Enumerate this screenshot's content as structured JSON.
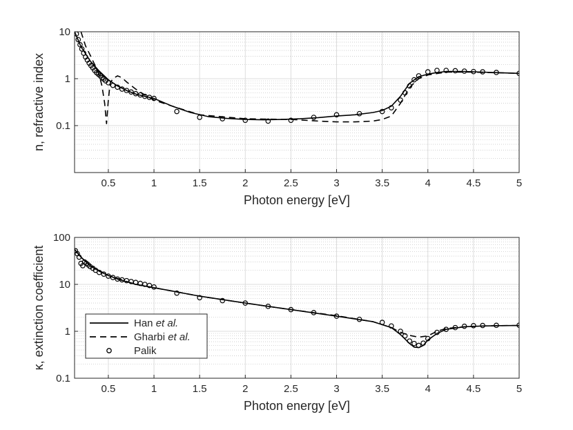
{
  "chart_data": [
    {
      "type": "line",
      "id": "n-panel",
      "xlabel": "Photon energy [eV]",
      "ylabel": "n, refractive index",
      "xlim": [
        0.13,
        5
      ],
      "ylim": [
        0.01,
        10
      ],
      "yscale": "log",
      "grid": true,
      "minor_grid": true,
      "xticks": [
        0.5,
        1,
        1.5,
        2,
        2.5,
        3,
        3.5,
        4,
        4.5,
        5
      ],
      "xtick_labels": [
        "0.5",
        "1",
        "1.5",
        "2",
        "2.5",
        "3",
        "3.5",
        "4",
        "4.5",
        "5"
      ],
      "yticks": [
        0.1,
        1,
        10
      ],
      "ytick_labels": [
        "0.1",
        "1",
        "10"
      ],
      "series": [
        {
          "name": "Han et al.",
          "style": "solid",
          "x": [
            0.13,
            0.2,
            0.3,
            0.4,
            0.5,
            0.6,
            0.7,
            0.8,
            0.9,
            1.0,
            1.2,
            1.4,
            1.6,
            1.8,
            2.0,
            2.2,
            2.4,
            2.6,
            2.8,
            3.0,
            3.2,
            3.4,
            3.5,
            3.6,
            3.7,
            3.8,
            3.9,
            4.0,
            4.1,
            4.2,
            4.4,
            4.6,
            4.8,
            5.0
          ],
          "y": [
            10,
            4.8,
            2.4,
            1.45,
            0.95,
            0.7,
            0.56,
            0.47,
            0.42,
            0.38,
            0.26,
            0.19,
            0.155,
            0.142,
            0.135,
            0.133,
            0.135,
            0.14,
            0.148,
            0.16,
            0.17,
            0.19,
            0.21,
            0.26,
            0.42,
            0.8,
            1.1,
            1.25,
            1.35,
            1.42,
            1.42,
            1.38,
            1.34,
            1.3
          ]
        },
        {
          "name": "Gharbi et al.",
          "style": "dashed",
          "x": [
            0.2,
            0.25,
            0.3,
            0.35,
            0.4,
            0.43,
            0.46,
            0.48,
            0.5,
            0.52,
            0.55,
            0.6,
            0.65,
            0.7,
            0.8,
            0.9,
            1.0,
            1.2,
            1.5,
            2.0,
            2.5,
            2.8,
            3.0,
            3.2,
            3.4,
            3.5,
            3.6,
            3.7,
            3.8,
            3.9,
            4.0,
            4.2,
            4.5,
            5.0
          ],
          "y": [
            10,
            5,
            3.2,
            2.0,
            1.2,
            0.7,
            0.3,
            0.11,
            0.35,
            0.8,
            1.0,
            1.15,
            1.05,
            0.85,
            0.6,
            0.45,
            0.35,
            0.26,
            0.17,
            0.14,
            0.135,
            0.125,
            0.12,
            0.12,
            0.125,
            0.135,
            0.16,
            0.3,
            0.65,
            1.0,
            1.2,
            1.38,
            1.38,
            1.3
          ]
        },
        {
          "name": "Palik",
          "style": "markers",
          "x": [
            0.15,
            0.17,
            0.19,
            0.21,
            0.23,
            0.25,
            0.27,
            0.29,
            0.31,
            0.33,
            0.35,
            0.37,
            0.39,
            0.41,
            0.43,
            0.45,
            0.47,
            0.5,
            0.55,
            0.6,
            0.65,
            0.7,
            0.75,
            0.8,
            0.85,
            0.9,
            0.95,
            1.0,
            1.25,
            1.5,
            1.75,
            2.0,
            2.25,
            2.5,
            2.75,
            3.0,
            3.25,
            3.5,
            3.6,
            3.7,
            3.75,
            3.8,
            3.85,
            3.9,
            4.0,
            4.1,
            4.2,
            4.3,
            4.4,
            4.5,
            4.6,
            4.75,
            5.0
          ],
          "y": [
            9,
            6.8,
            5.3,
            4.3,
            3.5,
            2.9,
            2.5,
            2.15,
            1.9,
            1.7,
            1.5,
            1.35,
            1.25,
            1.15,
            1.05,
            0.98,
            0.9,
            0.82,
            0.72,
            0.66,
            0.6,
            0.56,
            0.52,
            0.48,
            0.45,
            0.42,
            0.4,
            0.38,
            0.2,
            0.15,
            0.14,
            0.13,
            0.125,
            0.13,
            0.15,
            0.17,
            0.18,
            0.2,
            0.24,
            0.35,
            0.5,
            0.7,
            0.95,
            1.15,
            1.4,
            1.5,
            1.5,
            1.48,
            1.45,
            1.42,
            1.4,
            1.36,
            1.3
          ]
        }
      ]
    },
    {
      "type": "line",
      "id": "kappa-panel",
      "xlabel": "Photon energy [eV]",
      "ylabel": "κ, extinction coefficient",
      "xlim": [
        0.13,
        5
      ],
      "ylim": [
        0.1,
        100
      ],
      "yscale": "log",
      "grid": true,
      "minor_grid": true,
      "legend": "bottom-left",
      "xticks": [
        0.5,
        1,
        1.5,
        2,
        2.5,
        3,
        3.5,
        4,
        4.5,
        5
      ],
      "xtick_labels": [
        "0.5",
        "1",
        "1.5",
        "2",
        "2.5",
        "3",
        "3.5",
        "4",
        "4.5",
        "5"
      ],
      "yticks": [
        0.1,
        1,
        10,
        100
      ],
      "ytick_labels": [
        "0.1",
        "1",
        "10",
        "100"
      ],
      "series": [
        {
          "name": "Han et al.",
          "style": "solid",
          "x": [
            0.13,
            0.15,
            0.2,
            0.3,
            0.4,
            0.5,
            0.6,
            0.8,
            1.0,
            1.5,
            2.0,
            2.5,
            3.0,
            3.4,
            3.6,
            3.7,
            3.8,
            3.85,
            3.9,
            3.95,
            4.0,
            4.1,
            4.2,
            4.4,
            4.6,
            4.8,
            5.0
          ],
          "y": [
            55,
            50,
            38,
            25,
            19,
            15.5,
            13,
            10,
            8.5,
            5.6,
            4.0,
            2.9,
            2.1,
            1.6,
            1.2,
            0.85,
            0.55,
            0.46,
            0.45,
            0.5,
            0.65,
            0.9,
            1.1,
            1.25,
            1.3,
            1.32,
            1.33
          ]
        },
        {
          "name": "Gharbi et al.",
          "style": "dashed",
          "x": [
            0.13,
            0.2,
            0.3,
            0.5,
            0.8,
            1.0,
            1.5,
            2.0,
            2.5,
            3.0,
            3.4,
            3.6,
            3.7,
            3.8,
            3.9,
            4.0,
            4.1,
            4.2,
            4.4,
            4.6,
            4.8,
            5.0
          ],
          "y": [
            56,
            38,
            25,
            15.5,
            10,
            8.5,
            5.6,
            4.0,
            2.9,
            2.15,
            1.6,
            1.2,
            0.95,
            0.82,
            0.75,
            0.8,
            1.0,
            1.15,
            1.25,
            1.3,
            1.32,
            1.33
          ]
        },
        {
          "name": "Palik",
          "style": "markers",
          "x": [
            0.14,
            0.16,
            0.18,
            0.2,
            0.22,
            0.24,
            0.26,
            0.28,
            0.3,
            0.33,
            0.36,
            0.4,
            0.45,
            0.5,
            0.55,
            0.6,
            0.65,
            0.7,
            0.75,
            0.8,
            0.85,
            0.9,
            0.95,
            1.0,
            1.25,
            1.5,
            1.75,
            2.0,
            2.25,
            2.5,
            2.75,
            3.0,
            3.25,
            3.5,
            3.6,
            3.7,
            3.75,
            3.8,
            3.85,
            3.9,
            3.95,
            4.0,
            4.1,
            4.2,
            4.3,
            4.4,
            4.5,
            4.6,
            4.75,
            5.0
          ],
          "y": [
            52,
            45,
            38,
            28,
            25,
            30,
            28,
            26,
            24,
            22,
            20,
            18,
            16.5,
            15,
            14,
            13,
            12.5,
            12,
            11.5,
            11,
            10.5,
            10,
            9.5,
            8.8,
            6.5,
            5.2,
            4.5,
            4.0,
            3.4,
            2.9,
            2.5,
            2.1,
            1.8,
            1.55,
            1.3,
            1.0,
            0.8,
            0.62,
            0.55,
            0.5,
            0.56,
            0.7,
            0.95,
            1.1,
            1.2,
            1.28,
            1.32,
            1.33,
            1.34,
            1.35
          ]
        }
      ]
    }
  ],
  "legend": {
    "entries": [
      {
        "name": "Han",
        "suffix": "et al.",
        "style": "solid"
      },
      {
        "name": "Gharbi",
        "suffix": "et al.",
        "style": "dashed"
      },
      {
        "name": "Palik",
        "suffix": "",
        "style": "markers"
      }
    ]
  }
}
